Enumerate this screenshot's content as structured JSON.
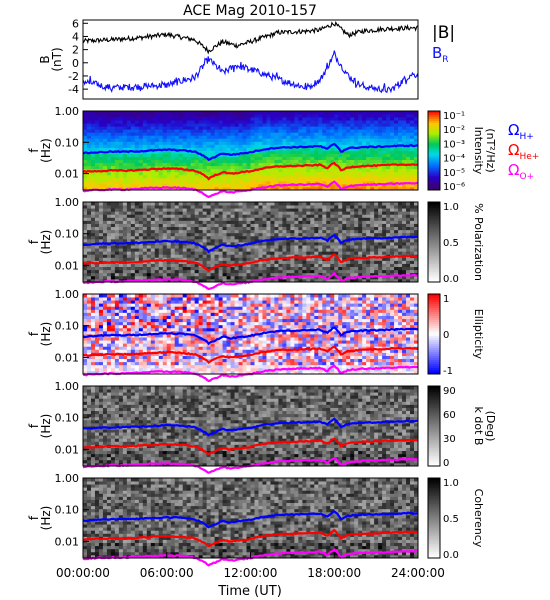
{
  "figure": {
    "title": "ACE Mag 2010-157",
    "xlabel": "Time (UT)",
    "xticks": [
      "00:00:00",
      "06:00:00",
      "12:00:00",
      "18:00:00",
      "24:00:00"
    ],
    "line_labels": {
      "h": "Ω",
      "h_sub": "H+",
      "he": "Ω",
      "he_sub": "He+",
      "o": "Ω",
      "o_sub": "O+"
    },
    "colors": {
      "B": "#000000",
      "BR": "#1010ff",
      "H": "#0000ff",
      "He": "#ff0000",
      "O": "#ff00ff"
    }
  },
  "chart_data": [
    {
      "type": "line",
      "ylabel": "B",
      "ylabel2": "(nT)",
      "ylim": [
        -5.5,
        6.5
      ],
      "yticks": [
        "6",
        "4",
        "2",
        "0",
        "-2",
        "-4"
      ],
      "x": [
        0,
        2,
        4,
        6,
        8,
        9,
        10,
        11,
        12,
        14,
        16,
        17,
        18,
        19,
        20,
        22,
        23.5
      ],
      "series": [
        {
          "name": "|B|",
          "values": [
            3.3,
            3.5,
            3.8,
            4.3,
            3.5,
            1.8,
            3.2,
            2.6,
            3.2,
            4.6,
            4.8,
            5.0,
            6.0,
            4.2,
            4.8,
            5.2,
            5.3
          ]
        },
        {
          "name": "B",
          "name_sub": "R",
          "values": [
            -2.8,
            -3.8,
            -3.6,
            -3.4,
            -2.2,
            0.6,
            -1.5,
            -0.4,
            -1.0,
            -2.5,
            -3.8,
            -2.6,
            1.3,
            -2.0,
            -3.6,
            -4.2,
            -1.8
          ]
        }
      ]
    },
    {
      "type": "heatmap",
      "ylabel": "f",
      "ylabel2": "(Hz)",
      "ylim": [
        0.003,
        1.0
      ],
      "yscale": "log",
      "yticks": [
        "1.00",
        "0.10",
        "0.01"
      ],
      "colorbar": {
        "label": "Intensity",
        "label2": "(nT²/Hz)",
        "ticks": [
          "10⁻¹",
          "10⁻²",
          "10⁻³",
          "10⁻⁴",
          "10⁻⁵",
          "10⁻⁶"
        ],
        "scale": "rainbow"
      }
    },
    {
      "type": "heatmap",
      "ylabel": "f",
      "ylabel2": "(Hz)",
      "ylim": [
        0.003,
        1.0
      ],
      "yscale": "log",
      "yticks": [
        "1.00",
        "0.10",
        "0.01"
      ],
      "colorbar": {
        "label": "% Polarization",
        "label2": "",
        "ticks": [
          "1.0",
          "0.5",
          "0.0"
        ],
        "scale": "gray"
      }
    },
    {
      "type": "heatmap",
      "ylabel": "f",
      "ylabel2": "(Hz)",
      "ylim": [
        0.003,
        1.0
      ],
      "yscale": "log",
      "yticks": [
        "1.00",
        "0.10",
        "0.01"
      ],
      "colorbar": {
        "label": "Ellipticity",
        "label2": "",
        "ticks": [
          "1",
          "0",
          "-1"
        ],
        "scale": "bwr"
      }
    },
    {
      "type": "heatmap",
      "ylabel": "f",
      "ylabel2": "(Hz)",
      "ylim": [
        0.003,
        1.0
      ],
      "yscale": "log",
      "yticks": [
        "1.00",
        "0.10",
        "0.01"
      ],
      "colorbar": {
        "label": "k dot B",
        "label2": "(Deg)",
        "ticks": [
          "90",
          "60",
          "30",
          "0"
        ],
        "scale": "gray"
      }
    },
    {
      "type": "heatmap",
      "ylabel": "f",
      "ylabel2": "(Hz)",
      "ylim": [
        0.003,
        1.0
      ],
      "yscale": "log",
      "yticks": [
        "1.00",
        "0.10",
        "0.01"
      ],
      "colorbar": {
        "label": "Coherency",
        "label2": "",
        "ticks": [
          "1.0",
          "0.5",
          "0.0"
        ],
        "scale": "gray"
      }
    }
  ],
  "gyrofrequency_lines": {
    "x": [
      0,
      1,
      2,
      3,
      4,
      5,
      6,
      7,
      8,
      8.5,
      9,
      9.5,
      10,
      10.5,
      11,
      12,
      13,
      14,
      15,
      16,
      17,
      17.5,
      18,
      18.5,
      19,
      20,
      21,
      22,
      23,
      24
    ],
    "H": [
      0.045,
      0.048,
      0.05,
      0.05,
      0.052,
      0.055,
      0.058,
      0.056,
      0.05,
      0.04,
      0.028,
      0.035,
      0.045,
      0.04,
      0.042,
      0.048,
      0.06,
      0.068,
      0.07,
      0.072,
      0.075,
      0.06,
      0.09,
      0.05,
      0.065,
      0.07,
      0.072,
      0.075,
      0.078,
      0.078
    ],
    "He": [
      0.0115,
      0.012,
      0.0125,
      0.0125,
      0.013,
      0.014,
      0.0145,
      0.014,
      0.0125,
      0.01,
      0.007,
      0.009,
      0.011,
      0.01,
      0.0105,
      0.012,
      0.015,
      0.017,
      0.0175,
      0.018,
      0.019,
      0.015,
      0.022,
      0.0125,
      0.016,
      0.0175,
      0.018,
      0.019,
      0.0195,
      0.0195
    ],
    "O": [
      0.0028,
      0.003,
      0.0031,
      0.0031,
      0.0033,
      0.0035,
      0.0036,
      0.0035,
      0.0031,
      0.0025,
      0.0018,
      0.0022,
      0.0028,
      0.0025,
      0.0026,
      0.003,
      0.0037,
      0.0042,
      0.0044,
      0.0045,
      0.0047,
      0.0037,
      0.0055,
      0.0031,
      0.004,
      0.0044,
      0.0045,
      0.0047,
      0.0049,
      0.0049
    ]
  }
}
